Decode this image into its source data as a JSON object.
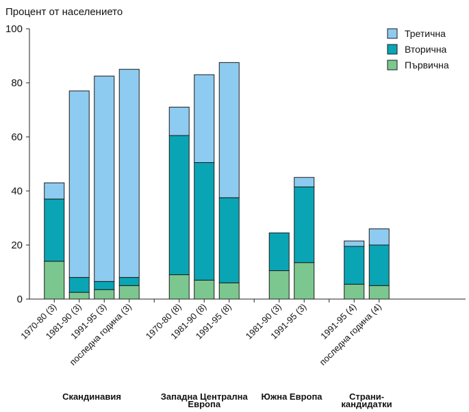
{
  "chart_data": {
    "type": "bar",
    "stacked": true,
    "ylabel": "Процент от населението",
    "ylim": [
      0,
      100
    ],
    "yticks": [
      0,
      20,
      40,
      60,
      80,
      100
    ],
    "legend_position": "top-right",
    "series": [
      {
        "name": "Първична",
        "color": "#7cc78f"
      },
      {
        "name": "Вторична",
        "color": "#0aa5b5"
      },
      {
        "name": "Третична",
        "color": "#8ecbf0"
      }
    ],
    "legend_order": [
      "Третична",
      "Вторична",
      "Първична"
    ],
    "groups": [
      {
        "label_lines": [
          "Скандинавия"
        ],
        "slots": [
          {
            "label": "1970-80 (3)",
            "values": [
              14,
              23,
              6
            ]
          },
          {
            "label": "1981-90 (3)",
            "values": [
              2.5,
              5.5,
              69
            ]
          },
          {
            "label": "1991-95 (3)",
            "values": [
              3.5,
              3,
              76
            ]
          },
          {
            "label": "последна година (3)",
            "values": [
              5,
              3,
              77
            ]
          }
        ]
      },
      {
        "label_lines": [
          "Западна Централна",
          "Европа"
        ],
        "slots": [
          {
            "label": "1970-80 (8)",
            "values": [
              9,
              51.5,
              10.5
            ]
          },
          {
            "label": "1981-90 (8)",
            "values": [
              7,
              43.5,
              32.5
            ]
          },
          {
            "label": "1991-95 (8)",
            "values": [
              6,
              31.5,
              50
            ]
          }
        ]
      },
      {
        "label_lines": [
          "Южна Европа"
        ],
        "slots": [
          {
            "label": "1981-90 (3)",
            "values": [
              10.5,
              14,
              0
            ]
          },
          {
            "label": "1991-95 (3)",
            "values": [
              13.5,
              28,
              3.5
            ]
          }
        ]
      },
      {
        "label_lines": [
          "Страни-",
          "кандидатки"
        ],
        "slots": [
          {
            "label": "1991-95 (4)",
            "values": [
              5.5,
              14,
              2
            ]
          },
          {
            "label": "последна година (4)",
            "values": [
              5,
              15,
              6
            ]
          }
        ]
      }
    ]
  }
}
